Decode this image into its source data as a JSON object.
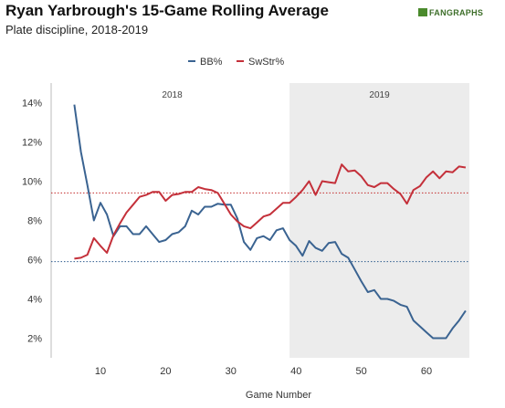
{
  "header": {
    "title": "Ryan Yarbrough's 15-Game Rolling Average",
    "subtitle": "Plate discipline, 2018-2019",
    "brand": "FANGRAPHS"
  },
  "chart_data": {
    "type": "line",
    "xlabel": "Game Number",
    "ylabel": "",
    "xlim": [
      3,
      67
    ],
    "ylim": [
      1,
      15
    ],
    "x_ticks": [
      10,
      20,
      30,
      40,
      50,
      60
    ],
    "y_ticks": [
      2,
      4,
      6,
      8,
      10,
      12,
      14
    ],
    "y_tick_labels": [
      "2%",
      "4%",
      "6%",
      "8%",
      "10%",
      "12%",
      "14%"
    ],
    "grid": false,
    "legend_position": "top-center",
    "season_regions": [
      {
        "label": "2018",
        "x_start": 3,
        "x_end": 39,
        "color": "#ffffff"
      },
      {
        "label": "2019",
        "x_start": 39,
        "x_end": 67,
        "color": "#ececec"
      }
    ],
    "reference_lines": [
      {
        "series": "BB%",
        "y": 5.9,
        "color": "#2f5c8e"
      },
      {
        "series": "SwStr%",
        "y": 9.4,
        "color": "#c42d2d"
      }
    ],
    "series": [
      {
        "name": "BB%",
        "color": "#3a6391",
        "x": [
          6,
          7,
          8,
          9,
          10,
          11,
          12,
          13,
          14,
          15,
          16,
          17,
          18,
          19,
          20,
          21,
          22,
          23,
          24,
          25,
          26,
          27,
          28,
          29,
          30,
          31,
          32,
          33,
          34,
          35,
          36,
          37,
          38,
          39,
          40,
          41,
          42,
          43,
          44,
          45,
          46,
          47,
          48,
          49,
          50,
          51,
          52,
          53,
          54,
          55,
          56,
          57,
          58,
          59,
          60,
          61,
          62,
          63,
          64,
          65,
          66
        ],
        "y": [
          13.9,
          11.5,
          9.8,
          8.0,
          8.9,
          8.3,
          7.2,
          7.7,
          7.7,
          7.3,
          7.3,
          7.7,
          7.3,
          6.9,
          7.0,
          7.3,
          7.4,
          7.7,
          8.5,
          8.3,
          8.7,
          8.7,
          8.85,
          8.8,
          8.8,
          8.1,
          6.9,
          6.5,
          7.1,
          7.2,
          7.0,
          7.5,
          7.6,
          7.0,
          6.7,
          6.2,
          6.95,
          6.6,
          6.45,
          6.85,
          6.9,
          6.3,
          6.1,
          5.5,
          4.9,
          4.35,
          4.45,
          4.0,
          4.0,
          3.9,
          3.7,
          3.6,
          2.9,
          2.6,
          2.3,
          2.0,
          2.0,
          2.0,
          2.5,
          2.9,
          3.4
        ]
      },
      {
        "name": "SwStr%",
        "color": "#c4303a",
        "x": [
          6,
          7,
          8,
          9,
          10,
          11,
          12,
          13,
          14,
          15,
          16,
          17,
          18,
          19,
          20,
          21,
          22,
          23,
          24,
          25,
          26,
          27,
          28,
          29,
          30,
          31,
          32,
          33,
          34,
          35,
          36,
          37,
          38,
          39,
          40,
          41,
          42,
          43,
          44,
          45,
          46,
          47,
          48,
          49,
          50,
          51,
          52,
          53,
          54,
          55,
          56,
          57,
          58,
          59,
          60,
          61,
          62,
          63,
          64,
          65,
          66
        ],
        "y": [
          6.05,
          6.1,
          6.25,
          7.1,
          6.7,
          6.35,
          7.25,
          7.85,
          8.4,
          8.8,
          9.2,
          9.3,
          9.45,
          9.45,
          9.0,
          9.3,
          9.35,
          9.45,
          9.45,
          9.7,
          9.6,
          9.55,
          9.4,
          8.85,
          8.3,
          7.95,
          7.7,
          7.6,
          7.9,
          8.2,
          8.3,
          8.6,
          8.9,
          8.9,
          9.2,
          9.55,
          10.0,
          9.3,
          10.0,
          9.95,
          9.9,
          10.85,
          10.5,
          10.55,
          10.25,
          9.8,
          9.7,
          9.9,
          9.9,
          9.6,
          9.35,
          8.85,
          9.55,
          9.75,
          10.2,
          10.5,
          10.15,
          10.5,
          10.45,
          10.75,
          10.7
        ]
      }
    ]
  }
}
